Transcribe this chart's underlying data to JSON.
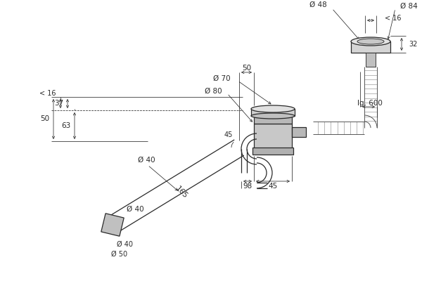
{
  "bg_color": "#ffffff",
  "line_color": "#2a2a2a",
  "dim_color": "#2a2a2a",
  "annotations": {
    "d48": "Ø 48",
    "d84": "Ø 84",
    "lt16_top": "< 16",
    "32": "32",
    "lg600": "lg. 600",
    "d70": "Ø 70",
    "d80": "Ø 80",
    "dim50": "50",
    "165": "165",
    "45deg": "45",
    "d40_pipe": "Ø 40",
    "d40_out": "Ø 40",
    "d50": "Ø 50",
    "98": "98",
    "45": "45",
    "lt16_left": "< 16",
    "37": "37",
    "50_left": "50",
    "63": "63"
  },
  "fs": 7.5
}
